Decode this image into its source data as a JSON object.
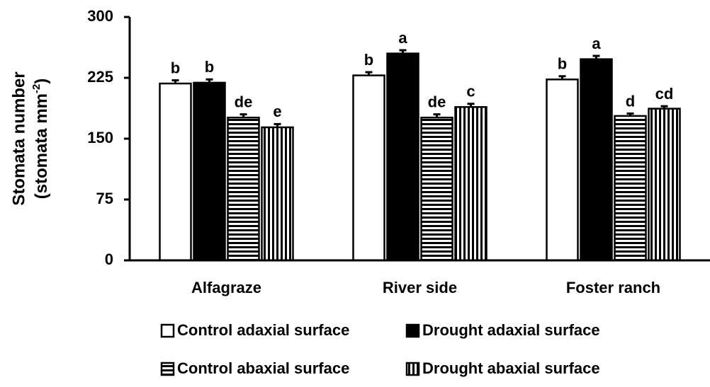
{
  "chart_data": {
    "type": "bar",
    "ylabel": "Stomata number",
    "ylabel2": {
      "text": "(stomata mm",
      "sup": "-2",
      "end": ")"
    },
    "categories": [
      "Alfagraze",
      "River side",
      "Foster ranch"
    ],
    "ylim": [
      0,
      300
    ],
    "yticks": [
      0,
      75,
      150,
      225,
      300
    ],
    "grid": false,
    "series": [
      {
        "name": "Control adaxial surface",
        "color": "#ffffff",
        "pattern": "solid",
        "values": [
          218,
          228,
          223
        ],
        "errors": [
          4,
          4,
          4
        ],
        "letters": [
          "b",
          "b",
          "b"
        ]
      },
      {
        "name": "Drought adaxial surface",
        "color": "#000000",
        "pattern": "solid",
        "values": [
          219,
          255,
          248
        ],
        "errors": [
          4,
          4,
          4
        ],
        "letters": [
          "b",
          "a",
          "a"
        ]
      },
      {
        "name": "Control abaxial surface",
        "color": "#000000",
        "pattern": "horizontal",
        "values": [
          176,
          176,
          178
        ],
        "errors": [
          4,
          4,
          3
        ],
        "letters": [
          "de",
          "de",
          "d"
        ]
      },
      {
        "name": "Drought abaxial surface",
        "color": "#000000",
        "pattern": "vertical",
        "values": [
          164,
          189,
          187
        ],
        "errors": [
          4,
          4,
          3
        ],
        "letters": [
          "e",
          "c",
          "cd"
        ]
      }
    ]
  }
}
